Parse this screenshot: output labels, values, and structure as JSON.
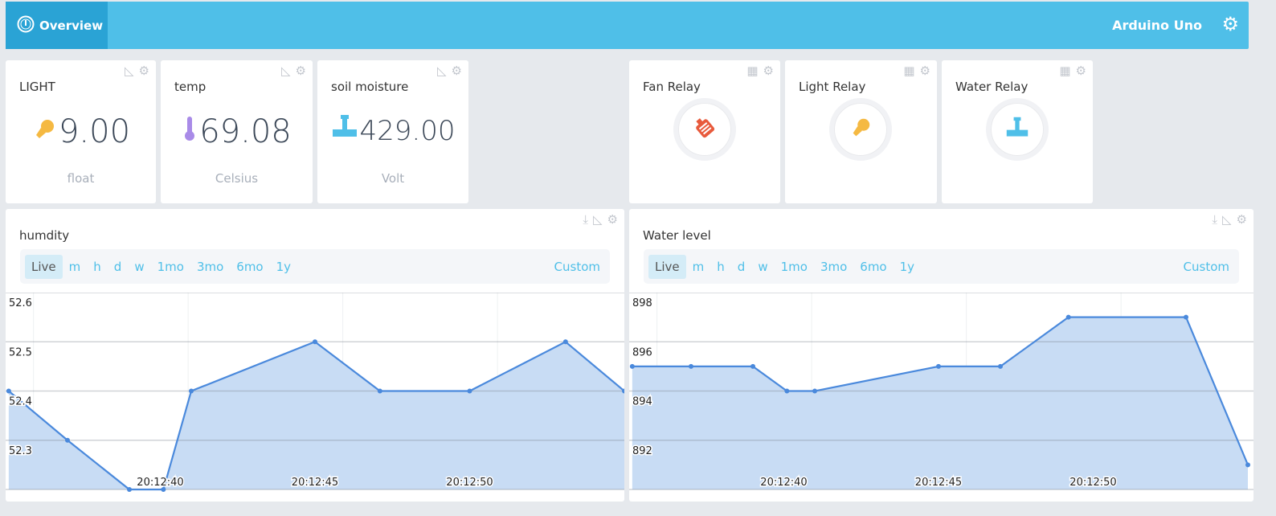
{
  "header": {
    "tab": "Overview",
    "device": "Arduino Uno"
  },
  "values": [
    {
      "title": "LIGHT",
      "value": "9.00",
      "unit": "float",
      "icon": "lightbulb-icon",
      "color": "#f5b942"
    },
    {
      "title": "temp",
      "value": "69.08",
      "unit": "Celsius",
      "icon": "thermometer-icon",
      "color": "#a98be8"
    },
    {
      "title": "soil moisture",
      "value": "429.00",
      "unit": "Volt",
      "icon": "water-tap-icon",
      "color": "#4fbfe8"
    }
  ],
  "relays": [
    {
      "title": "Fan Relay",
      "icon": "fan-icon",
      "color": "#e85a3c"
    },
    {
      "title": "Light Relay",
      "icon": "lightbulb-icon",
      "color": "#f5b942"
    },
    {
      "title": "Water Relay",
      "icon": "water-tap-icon",
      "color": "#4fbfe8"
    }
  ],
  "ranges": [
    "Live",
    "m",
    "h",
    "d",
    "w",
    "1mo",
    "3mo",
    "6mo",
    "1y"
  ],
  "custom": "Custom",
  "chart_data": [
    {
      "type": "area",
      "title": "humdity",
      "x_unit": "seconds after 20:12:00",
      "x": [
        35.1,
        37,
        39,
        40.1,
        41,
        45,
        47.1,
        50,
        53.1,
        55
      ],
      "values": [
        52.4,
        52.3,
        52.2,
        52.2,
        52.4,
        52.5,
        52.4,
        52.4,
        52.5,
        52.4
      ],
      "xlim": [
        35,
        55
      ],
      "ylim": [
        52.2,
        52.6
      ],
      "yticks": [
        "52.6",
        "52.5",
        "52.4",
        "52.3"
      ],
      "ytick_vals": [
        52.6,
        52.5,
        52.4,
        52.3
      ],
      "xticks": [
        "20:12:40",
        "20:12:45",
        "20:12:50"
      ],
      "xtick_vals": [
        40,
        45,
        50
      ],
      "line_color": "#4a89dc",
      "fill_color": "#c8dcf4"
    },
    {
      "type": "area",
      "title": "Water level",
      "x_unit": "seconds after 20:12:00",
      "x": [
        35.1,
        37,
        39,
        40.1,
        41,
        45,
        47,
        49.2,
        53,
        55
      ],
      "values": [
        895,
        895,
        895,
        894,
        894,
        895,
        895,
        897,
        897,
        891
      ],
      "xlim": [
        35,
        55
      ],
      "ylim": [
        890,
        898
      ],
      "yticks": [
        "898",
        "896",
        "894",
        "892"
      ],
      "ytick_vals": [
        898,
        896,
        894,
        892
      ],
      "xticks": [
        "20:12:40",
        "20:12:45",
        "20:12:50"
      ],
      "xtick_vals": [
        40,
        45,
        50
      ],
      "line_color": "#4a89dc",
      "fill_color": "#c8dcf4"
    }
  ]
}
